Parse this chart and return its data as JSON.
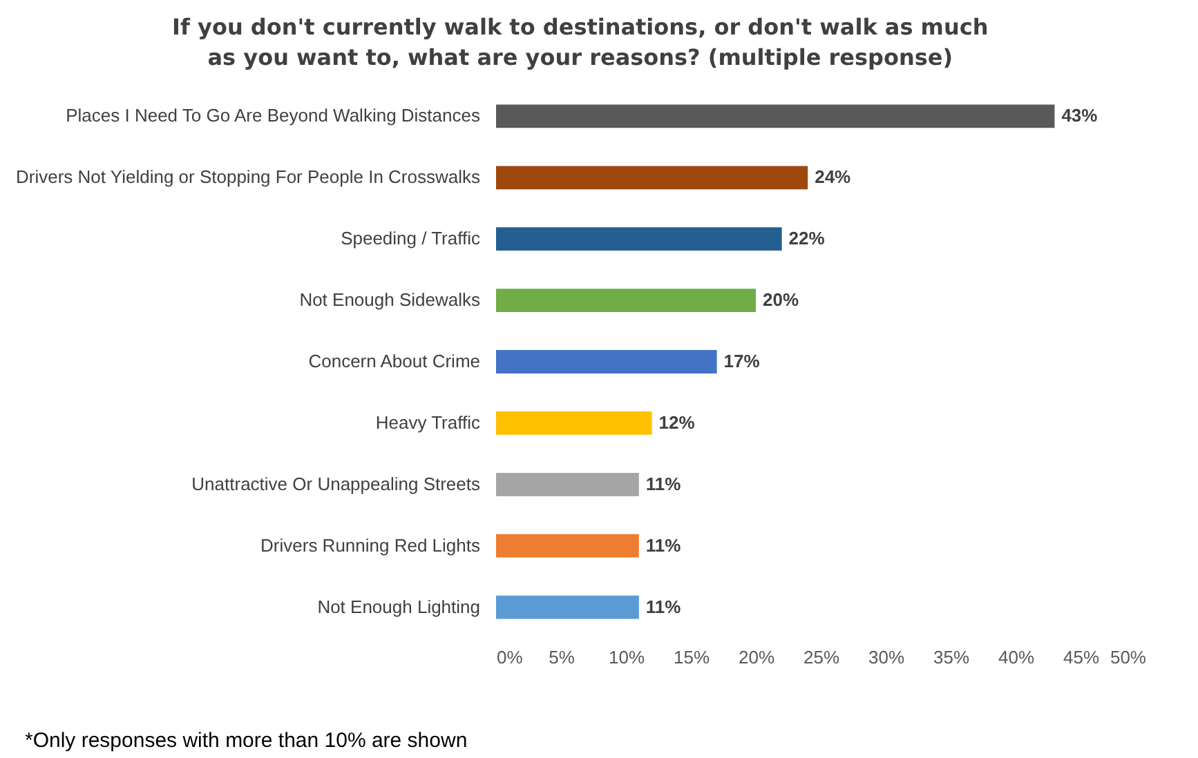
{
  "chart_data": {
    "type": "bar",
    "orientation": "horizontal",
    "title": "If you don't currently walk to destinations, or don't walk as much as you want to, what are your reasons? (multiple response)",
    "categories": [
      "Places I Need To Go Are Beyond Walking Distances",
      "Drivers Not Yielding or Stopping For People In Crosswalks",
      "Speeding / Traffic",
      "Not Enough Sidewalks",
      "Concern About Crime",
      "Heavy Traffic",
      "Unattractive Or Unappealing Streets",
      "Drivers Running Red Lights",
      "Not Enough Lighting"
    ],
    "values": [
      43,
      24,
      22,
      20,
      17,
      12,
      11,
      11,
      11
    ],
    "colors": [
      "#595959",
      "#9e480e",
      "#255e91",
      "#70ad47",
      "#4472c4",
      "#ffc000",
      "#a5a5a5",
      "#ed7d31",
      "#5b9bd5"
    ],
    "value_labels": [
      "43%",
      "24%",
      "22%",
      "20%",
      "17%",
      "12%",
      "11%",
      "11%",
      "11%"
    ],
    "xlim": [
      0,
      50
    ],
    "xticks": [
      {
        "value": 0,
        "label": "0%"
      },
      {
        "value": 5,
        "label": "5%"
      },
      {
        "value": 10,
        "label": "10%"
      },
      {
        "value": 15,
        "label": "15%"
      },
      {
        "value": 20,
        "label": "20%"
      },
      {
        "value": 25,
        "label": "25%"
      },
      {
        "value": 30,
        "label": "30%"
      },
      {
        "value": 35,
        "label": "35%"
      },
      {
        "value": 40,
        "label": "40%"
      },
      {
        "value": 45,
        "label": "45%"
      },
      {
        "value": 50,
        "label": "50%"
      }
    ],
    "grid": false,
    "annotations": [
      "*Only responses with more than 10% are shown"
    ]
  }
}
